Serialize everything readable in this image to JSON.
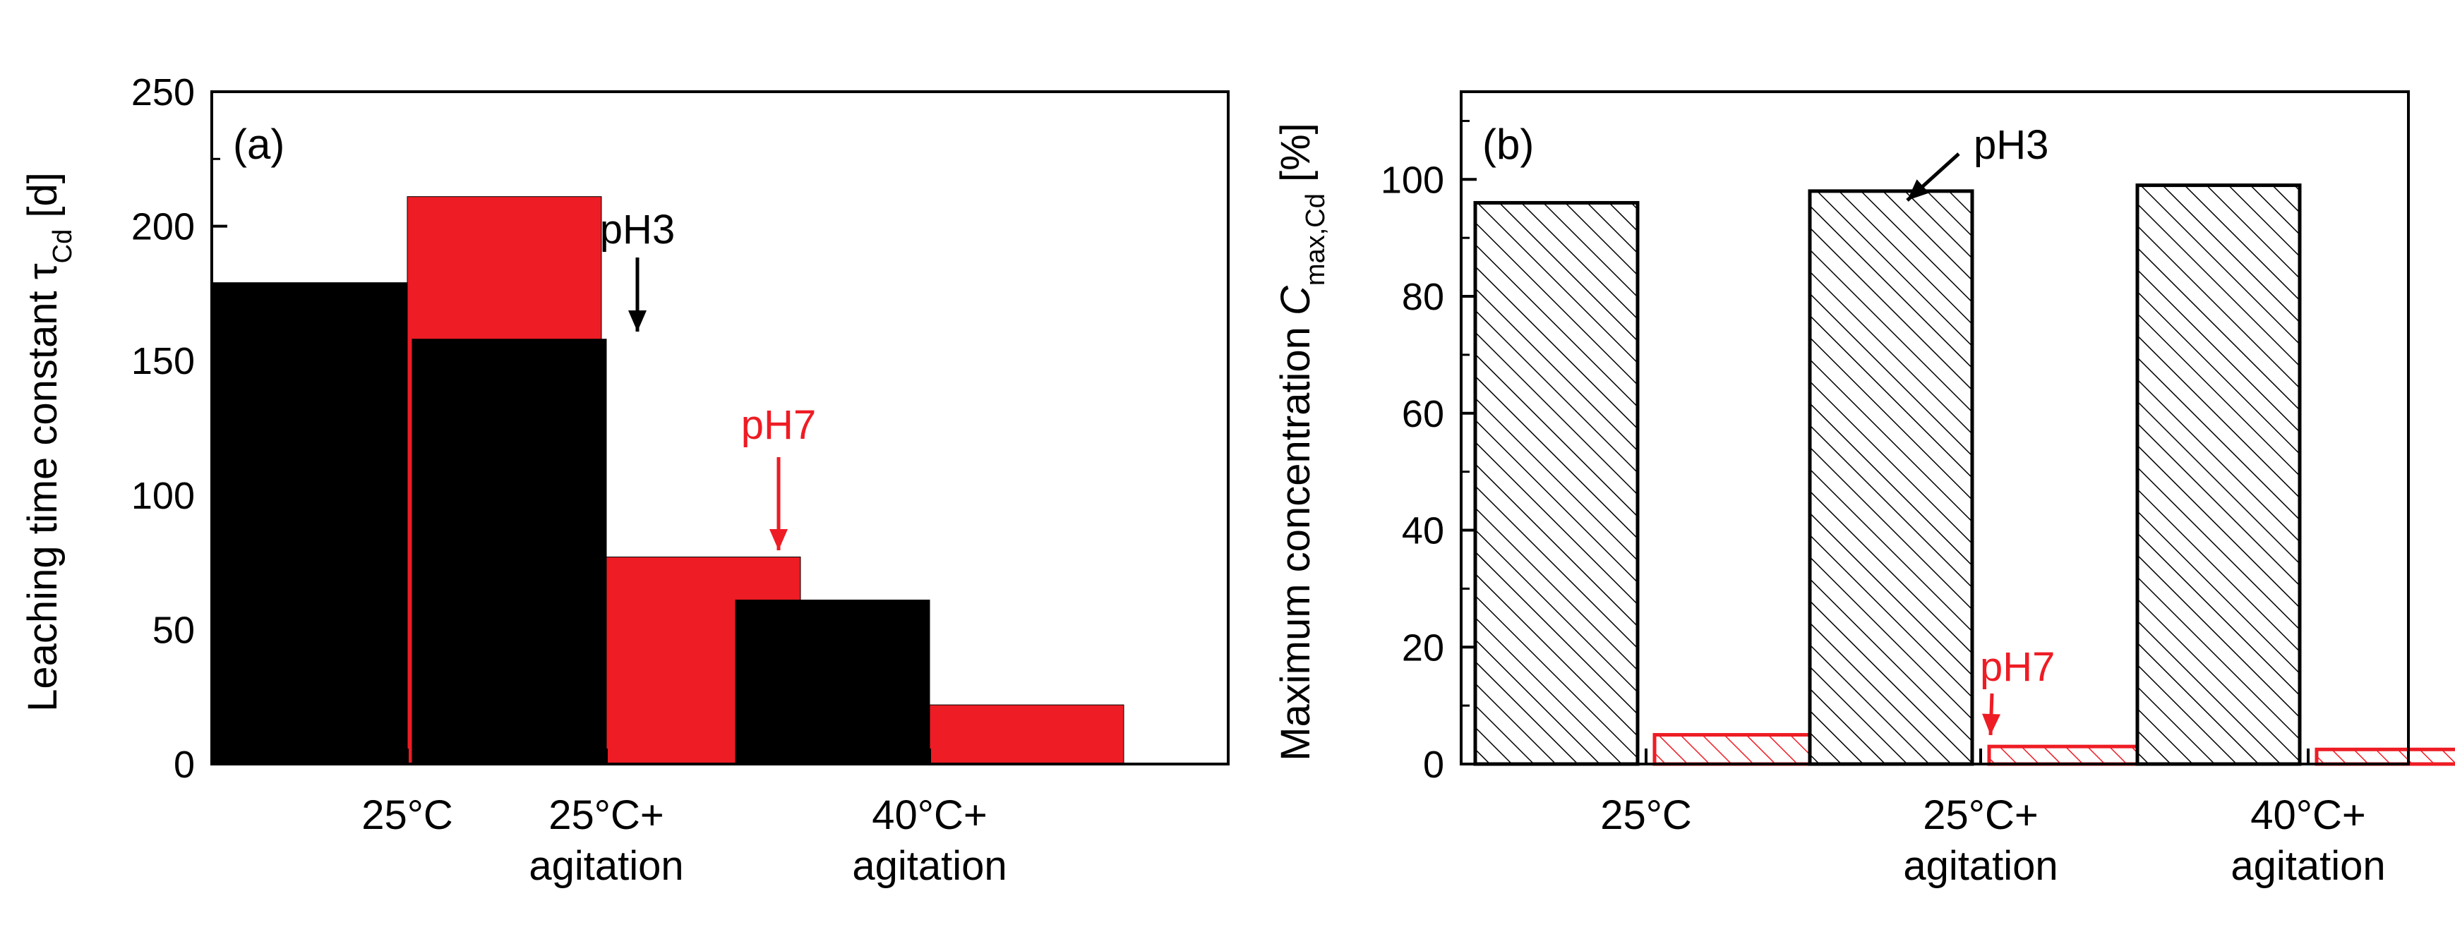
{
  "colors": {
    "pH3": "#000000",
    "pH7": "#ee1c24",
    "frame": "#000000",
    "background": "#ffffff"
  },
  "chart_data": [
    {
      "id": "a",
      "type": "bar",
      "panel_label": "(a)",
      "title": "",
      "ylabel": {
        "main": "Leaching time constant τ",
        "sub": "Cd",
        "unit": " [d]"
      },
      "xlabel": "",
      "ylim": [
        0,
        250
      ],
      "yticks": [
        0,
        50,
        100,
        150,
        200,
        250
      ],
      "categories": [
        [
          "25°C"
        ],
        [
          "25°C+",
          "agitation"
        ],
        [
          "40°C+",
          "agitation"
        ]
      ],
      "series": [
        {
          "name": "pH3",
          "style": "solid",
          "values": [
            179,
            158,
            61
          ]
        },
        {
          "name": "pH7",
          "style": "solid",
          "values": [
            211,
            77,
            22
          ]
        }
      ],
      "annotations": [
        {
          "text": "pH3",
          "series": "pH3",
          "category": 1,
          "direction": "down"
        },
        {
          "text": "pH7",
          "series": "pH7",
          "category": 1,
          "direction": "down"
        }
      ]
    },
    {
      "id": "b",
      "type": "bar",
      "panel_label": "(b)",
      "title": "",
      "ylabel": {
        "main": "Maximum concentration ",
        "italic": "C",
        "sub": "max,Cd",
        "unit": " [%]"
      },
      "xlabel": "",
      "ylim": [
        0,
        115
      ],
      "yticks": [
        0,
        20,
        40,
        60,
        80,
        100
      ],
      "categories": [
        [
          "25°C"
        ],
        [
          "25°C+",
          "agitation"
        ],
        [
          "40°C+",
          "agitation"
        ]
      ],
      "series": [
        {
          "name": "pH3",
          "style": "hatched",
          "values": [
            96,
            98,
            99
          ]
        },
        {
          "name": "pH7",
          "style": "hatched",
          "values": [
            5,
            3,
            2.5
          ]
        }
      ],
      "annotations": [
        {
          "text": "pH3",
          "series": "pH3",
          "category": 1,
          "direction": "down-left"
        },
        {
          "text": "pH7",
          "series": "pH7",
          "category": 1,
          "direction": "down-left"
        }
      ]
    }
  ]
}
